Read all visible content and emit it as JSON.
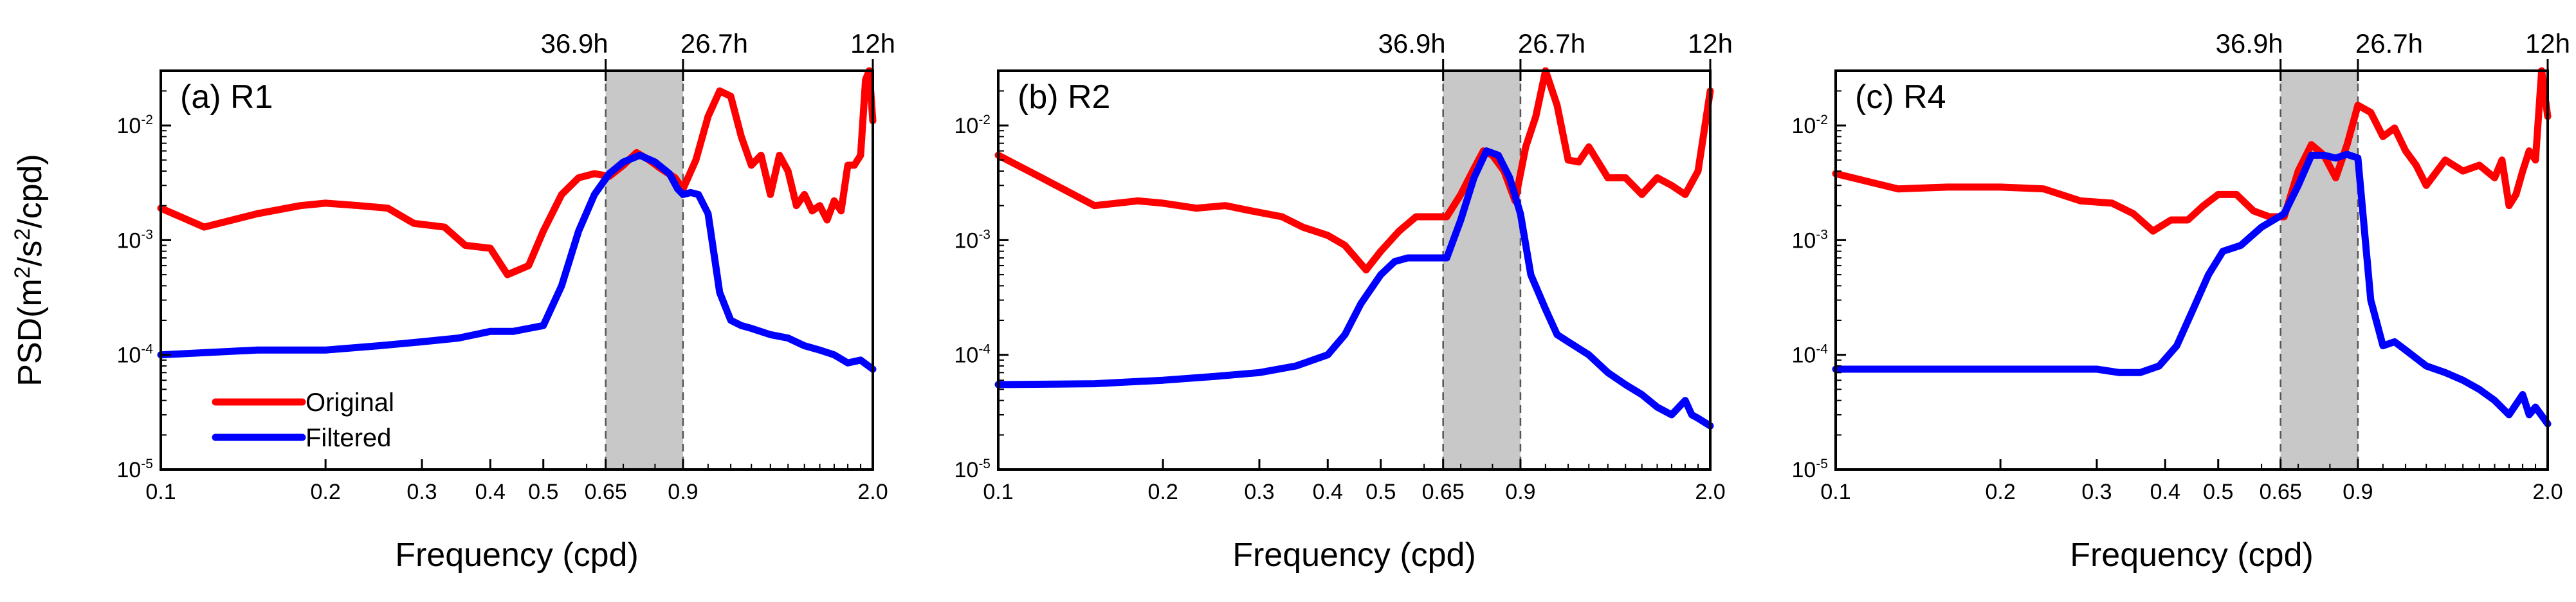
{
  "colors": {
    "original": "#ff0000",
    "filtered": "#0000ff",
    "band": "#c8c8c8",
    "frame": "#000000"
  },
  "chart_data": [
    {
      "type": "line",
      "title": "(a) R1",
      "xlabel": "Frequency (cpd)",
      "ylabel": {
        "prefix": "PSD(m",
        "sup1": "2",
        "mid": "/s",
        "sup2": "2",
        "suffix": "/cpd)"
      },
      "xscale": "log",
      "yscale": "log",
      "xlim": [
        0.1,
        2.0
      ],
      "ylim": [
        1e-05,
        0.03
      ],
      "xticks": [
        0.1,
        0.2,
        0.3,
        0.4,
        0.5,
        0.65,
        0.9,
        2.0
      ],
      "xtick_labels": [
        "0.1",
        "0.2",
        "0.3",
        "0.4",
        "0.5",
        "0.65",
        "0.9",
        "2.0"
      ],
      "yticks": [
        1e-05,
        0.0001,
        0.001,
        0.01
      ],
      "ytick_labels": [
        {
          "base": "10",
          "exp": "-5"
        },
        {
          "base": "10",
          "exp": "-4"
        },
        {
          "base": "10",
          "exp": "-3"
        },
        {
          "base": "10",
          "exp": "-2"
        }
      ],
      "top_ticks": [
        0.65,
        0.9,
        2.0
      ],
      "top_labels": [
        "36.9h",
        "26.7h",
        "12h"
      ],
      "band": [
        0.65,
        0.9
      ],
      "legend": [
        "Original",
        "Filtered"
      ],
      "series": [
        {
          "name": "Original",
          "x": [
            0.1,
            0.12,
            0.15,
            0.18,
            0.2,
            0.23,
            0.26,
            0.29,
            0.33,
            0.36,
            0.4,
            0.43,
            0.47,
            0.5,
            0.54,
            0.58,
            0.62,
            0.66,
            0.7,
            0.74,
            0.78,
            0.82,
            0.87,
            0.9,
            0.95,
            1.0,
            1.05,
            1.1,
            1.15,
            1.2,
            1.25,
            1.3,
            1.35,
            1.4,
            1.45,
            1.5,
            1.55,
            1.6,
            1.65,
            1.7,
            1.75,
            1.8,
            1.85,
            1.9,
            1.94,
            1.97,
            2.0
          ],
          "y": [
            0.0019,
            0.0013,
            0.0017,
            0.002,
            0.0021,
            0.002,
            0.0019,
            0.0014,
            0.0013,
            0.0009,
            0.00085,
            0.0005,
            0.0006,
            0.0012,
            0.0025,
            0.0035,
            0.0038,
            0.0036,
            0.0045,
            0.0058,
            0.005,
            0.0042,
            0.0035,
            0.0028,
            0.005,
            0.012,
            0.02,
            0.018,
            0.008,
            0.0045,
            0.0055,
            0.0025,
            0.0055,
            0.004,
            0.002,
            0.0025,
            0.0018,
            0.002,
            0.0015,
            0.0022,
            0.0018,
            0.0045,
            0.0045,
            0.0055,
            0.025,
            0.03,
            0.011
          ]
        },
        {
          "name": "Filtered",
          "x": [
            0.1,
            0.15,
            0.2,
            0.25,
            0.3,
            0.35,
            0.4,
            0.44,
            0.47,
            0.5,
            0.54,
            0.58,
            0.62,
            0.66,
            0.7,
            0.75,
            0.8,
            0.85,
            0.88,
            0.9,
            0.93,
            0.96,
            1.0,
            1.05,
            1.1,
            1.15,
            1.2,
            1.3,
            1.4,
            1.5,
            1.6,
            1.7,
            1.8,
            1.9,
            2.0
          ],
          "y": [
            0.0001,
            0.00011,
            0.00011,
            0.00012,
            0.00013,
            0.00014,
            0.00016,
            0.00016,
            0.00017,
            0.00018,
            0.0004,
            0.0012,
            0.0025,
            0.0038,
            0.0048,
            0.0055,
            0.0048,
            0.0038,
            0.0028,
            0.0025,
            0.0026,
            0.0025,
            0.0017,
            0.00035,
            0.0002,
            0.00018,
            0.00017,
            0.00015,
            0.00014,
            0.00012,
            0.00011,
            0.0001,
            8.5e-05,
            9e-05,
            7.5e-05
          ]
        }
      ]
    },
    {
      "type": "line",
      "title": "(b) R2",
      "xlabel": "Frequency (cpd)",
      "xscale": "log",
      "yscale": "log",
      "xlim": [
        0.1,
        2.0
      ],
      "ylim": [
        1e-05,
        0.03
      ],
      "xticks": [
        0.1,
        0.2,
        0.3,
        0.4,
        0.5,
        0.65,
        0.9,
        2.0
      ],
      "xtick_labels": [
        "0.1",
        "0.2",
        "0.3",
        "0.4",
        "0.5",
        "0.65",
        "0.9",
        "2.0"
      ],
      "yticks": [
        1e-05,
        0.0001,
        0.001,
        0.01
      ],
      "ytick_labels": [
        {
          "base": "10",
          "exp": "-5"
        },
        {
          "base": "10",
          "exp": "-4"
        },
        {
          "base": "10",
          "exp": "-3"
        },
        {
          "base": "10",
          "exp": "-2"
        }
      ],
      "top_ticks": [
        0.65,
        0.9,
        2.0
      ],
      "top_labels": [
        "36.9h",
        "26.7h",
        "12h"
      ],
      "band": [
        0.65,
        0.9
      ],
      "series": [
        {
          "name": "Original",
          "x": [
            0.1,
            0.12,
            0.15,
            0.18,
            0.2,
            0.23,
            0.26,
            0.29,
            0.33,
            0.36,
            0.4,
            0.43,
            0.45,
            0.47,
            0.5,
            0.54,
            0.58,
            0.62,
            0.66,
            0.7,
            0.74,
            0.77,
            0.8,
            0.84,
            0.88,
            0.92,
            0.96,
            1.0,
            1.05,
            1.1,
            1.15,
            1.2,
            1.3,
            1.4,
            1.5,
            1.6,
            1.7,
            1.8,
            1.9,
            2.0
          ],
          "y": [
            0.0055,
            0.0035,
            0.002,
            0.0022,
            0.0021,
            0.0019,
            0.002,
            0.0018,
            0.0016,
            0.0013,
            0.0011,
            0.0009,
            0.0007,
            0.00055,
            0.0008,
            0.0012,
            0.0016,
            0.0016,
            0.0016,
            0.0025,
            0.0042,
            0.006,
            0.0055,
            0.004,
            0.0022,
            0.0065,
            0.012,
            0.03,
            0.015,
            0.005,
            0.0048,
            0.0065,
            0.0035,
            0.0035,
            0.0025,
            0.0035,
            0.003,
            0.0025,
            0.004,
            0.02
          ]
        },
        {
          "name": "Filtered",
          "x": [
            0.1,
            0.15,
            0.2,
            0.25,
            0.3,
            0.35,
            0.4,
            0.43,
            0.46,
            0.5,
            0.53,
            0.56,
            0.6,
            0.66,
            0.7,
            0.74,
            0.78,
            0.82,
            0.86,
            0.9,
            0.94,
            1.0,
            1.05,
            1.1,
            1.2,
            1.3,
            1.4,
            1.5,
            1.6,
            1.7,
            1.8,
            1.85,
            1.9,
            2.0
          ],
          "y": [
            5.5e-05,
            5.6e-05,
            6e-05,
            6.5e-05,
            7e-05,
            8e-05,
            0.0001,
            0.00015,
            0.00028,
            0.0005,
            0.00065,
            0.0007,
            0.0007,
            0.0007,
            0.0015,
            0.0035,
            0.006,
            0.0055,
            0.0035,
            0.0017,
            0.0005,
            0.00025,
            0.00015,
            0.00013,
            0.0001,
            7e-05,
            5.5e-05,
            4.5e-05,
            3.5e-05,
            3e-05,
            4e-05,
            3e-05,
            2.8e-05,
            2.4e-05
          ]
        }
      ]
    },
    {
      "type": "line",
      "title": "(c) R4",
      "xlabel": "Frequency (cpd)",
      "xscale": "log",
      "yscale": "log",
      "xlim": [
        0.1,
        2.0
      ],
      "ylim": [
        1e-05,
        0.03
      ],
      "xticks": [
        0.1,
        0.2,
        0.3,
        0.4,
        0.5,
        0.65,
        0.9,
        2.0
      ],
      "xtick_labels": [
        "0.1",
        "0.2",
        "0.3",
        "0.4",
        "0.5",
        "0.65",
        "0.9",
        "2.0"
      ],
      "yticks": [
        1e-05,
        0.0001,
        0.001,
        0.01
      ],
      "ytick_labels": [
        {
          "base": "10",
          "exp": "-5"
        },
        {
          "base": "10",
          "exp": "-4"
        },
        {
          "base": "10",
          "exp": "-3"
        },
        {
          "base": "10",
          "exp": "-2"
        }
      ],
      "top_ticks": [
        0.65,
        0.9,
        2.0
      ],
      "top_labels": [
        "36.9h",
        "26.7h",
        "12h"
      ],
      "band": [
        0.65,
        0.9
      ],
      "series": [
        {
          "name": "Original",
          "x": [
            0.1,
            0.13,
            0.16,
            0.2,
            0.24,
            0.28,
            0.32,
            0.35,
            0.38,
            0.41,
            0.44,
            0.47,
            0.5,
            0.54,
            0.58,
            0.62,
            0.66,
            0.7,
            0.74,
            0.78,
            0.82,
            0.86,
            0.9,
            0.95,
            1.0,
            1.05,
            1.1,
            1.15,
            1.2,
            1.3,
            1.4,
            1.5,
            1.6,
            1.65,
            1.7,
            1.75,
            1.8,
            1.85,
            1.9,
            1.95,
            2.0
          ],
          "y": [
            0.0038,
            0.0028,
            0.0029,
            0.0029,
            0.0028,
            0.0022,
            0.0021,
            0.0017,
            0.0012,
            0.0015,
            0.0015,
            0.002,
            0.0025,
            0.0025,
            0.0018,
            0.0016,
            0.0016,
            0.004,
            0.0068,
            0.0055,
            0.0035,
            0.0068,
            0.015,
            0.013,
            0.008,
            0.0095,
            0.006,
            0.0045,
            0.003,
            0.005,
            0.004,
            0.0045,
            0.0035,
            0.005,
            0.002,
            0.0025,
            0.004,
            0.006,
            0.005,
            0.03,
            0.012
          ]
        },
        {
          "name": "Filtered",
          "x": [
            0.1,
            0.15,
            0.2,
            0.25,
            0.3,
            0.33,
            0.36,
            0.39,
            0.42,
            0.45,
            0.48,
            0.51,
            0.55,
            0.6,
            0.66,
            0.7,
            0.74,
            0.78,
            0.82,
            0.86,
            0.9,
            0.95,
            1.0,
            1.05,
            1.1,
            1.2,
            1.3,
            1.4,
            1.5,
            1.6,
            1.7,
            1.8,
            1.85,
            1.9,
            2.0
          ],
          "y": [
            7.5e-05,
            7.5e-05,
            7.5e-05,
            7.5e-05,
            7.5e-05,
            7e-05,
            7e-05,
            8e-05,
            0.00012,
            0.00025,
            0.0005,
            0.0008,
            0.0009,
            0.0013,
            0.0017,
            0.003,
            0.0055,
            0.0055,
            0.0052,
            0.0056,
            0.0052,
            0.0003,
            0.00012,
            0.00013,
            0.00011,
            8e-05,
            7e-05,
            6e-05,
            5e-05,
            4e-05,
            3e-05,
            4.5e-05,
            3e-05,
            3.5e-05,
            2.5e-05
          ]
        }
      ]
    }
  ]
}
